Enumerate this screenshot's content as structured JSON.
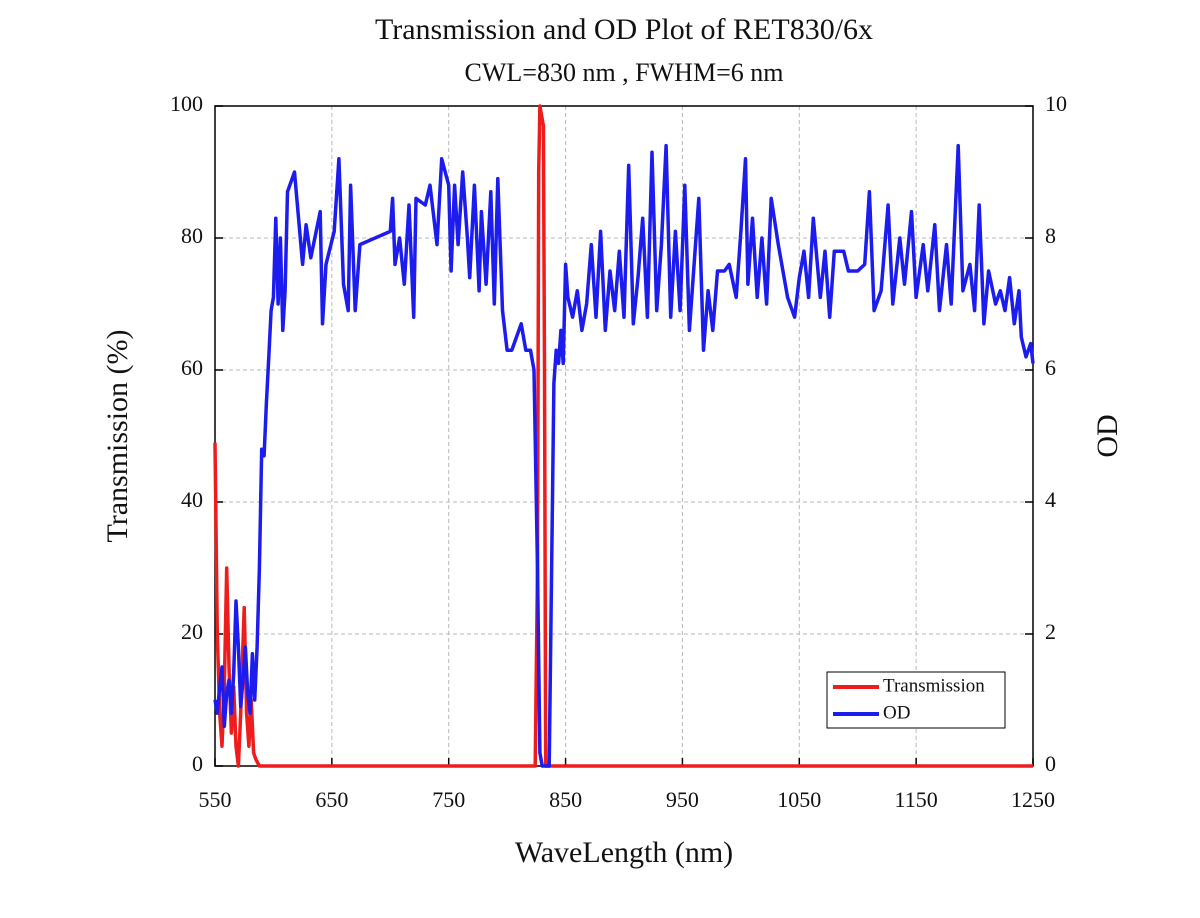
{
  "chart_data": {
    "type": "line",
    "title": "Transmission and OD Plot of RET830/6x",
    "subtitle": "CWL=830 nm , FWHM=6 nm",
    "x_label": "WaveLength (nm)",
    "y_label": "Transmission (%)",
    "y2_label": "OD",
    "xlim": [
      550,
      1250
    ],
    "xticks": [
      550,
      650,
      750,
      850,
      950,
      1050,
      1150,
      1250
    ],
    "ylim": [
      0,
      100
    ],
    "yticks": [
      0,
      20,
      40,
      60,
      80,
      100
    ],
    "y2lim": [
      0,
      10
    ],
    "y2ticks": [
      0,
      2,
      4,
      6,
      8,
      10
    ],
    "grid": true,
    "legend": "lower right",
    "series": [
      {
        "name": "Transmission",
        "color": "#ee1c1c",
        "x": [
          550,
          552,
          554,
          556,
          558,
          560,
          562,
          564,
          566,
          568,
          570,
          572,
          575,
          577,
          579,
          581,
          583,
          585,
          588,
          600,
          820,
          824,
          826,
          827,
          828,
          830,
          831,
          832,
          833,
          836,
          1250
        ],
        "values": [
          49,
          20,
          8,
          3,
          12,
          30,
          15,
          5,
          12,
          3,
          0,
          8,
          24,
          8,
          3,
          10,
          2,
          1,
          0,
          0,
          0,
          0,
          30,
          90,
          100,
          98,
          97,
          60,
          0,
          0,
          0
        ]
      },
      {
        "name": "OD",
        "color": "#1c1cee",
        "axis": "y2",
        "x": [
          550,
          552,
          554,
          556,
          558,
          560,
          562,
          564,
          566,
          568,
          570,
          572,
          574,
          576,
          578,
          580,
          582,
          584,
          586,
          588,
          590,
          592,
          594,
          596,
          598,
          600,
          602,
          604,
          606,
          608,
          610,
          612,
          618,
          625,
          628,
          632,
          640,
          642,
          645,
          652,
          656,
          660,
          664,
          666,
          670,
          674,
          700,
          702,
          704,
          708,
          712,
          716,
          720,
          722,
          730,
          734,
          740,
          744,
          750,
          752,
          755,
          758,
          762,
          766,
          768,
          772,
          776,
          778,
          782,
          786,
          789,
          792,
          796,
          800,
          804,
          808,
          812,
          816,
          820,
          823,
          826,
          828,
          830,
          836,
          840,
          842,
          844,
          846,
          848,
          850,
          852,
          856,
          860,
          864,
          868,
          872,
          876,
          880,
          884,
          888,
          892,
          896,
          900,
          904,
          908,
          912,
          916,
          920,
          924,
          928,
          932,
          936,
          940,
          944,
          948,
          952,
          956,
          960,
          964,
          968,
          972,
          976,
          980,
          986,
          990,
          996,
          1000,
          1004,
          1006,
          1010,
          1014,
          1018,
          1022,
          1026,
          1032,
          1040,
          1046,
          1050,
          1054,
          1058,
          1062,
          1068,
          1072,
          1076,
          1080,
          1088,
          1092,
          1100,
          1106,
          1110,
          1114,
          1120,
          1126,
          1130,
          1136,
          1140,
          1146,
          1150,
          1156,
          1160,
          1166,
          1170,
          1176,
          1180,
          1186,
          1190,
          1196,
          1200,
          1204,
          1208,
          1212,
          1218,
          1222,
          1226,
          1230,
          1234,
          1238,
          1240,
          1244,
          1248,
          1250
        ],
        "values": [
          1.0,
          0.8,
          1.2,
          1.5,
          0.6,
          1.1,
          1.3,
          0.8,
          1.4,
          2.5,
          1.8,
          0.9,
          1.3,
          1.8,
          1.1,
          0.8,
          1.7,
          1.0,
          1.8,
          3.0,
          4.8,
          4.7,
          5.5,
          6.2,
          6.9,
          7.1,
          8.3,
          7.0,
          8.0,
          6.6,
          7.2,
          8.7,
          9.0,
          7.6,
          8.2,
          7.7,
          8.4,
          6.7,
          7.6,
          8.1,
          9.2,
          7.3,
          6.9,
          8.8,
          6.9,
          7.9,
          8.1,
          8.6,
          7.6,
          8.0,
          7.3,
          8.5,
          6.8,
          8.6,
          8.5,
          8.8,
          7.9,
          9.2,
          8.8,
          7.5,
          8.8,
          7.9,
          9.0,
          8.0,
          7.4,
          8.8,
          7.2,
          8.4,
          7.3,
          8.7,
          7.0,
          8.9,
          6.9,
          6.3,
          6.3,
          6.5,
          6.7,
          6.3,
          6.3,
          6.0,
          3.0,
          0.2,
          0,
          0,
          5.8,
          6.3,
          6.1,
          6.6,
          6.1,
          7.6,
          7.1,
          6.8,
          7.2,
          6.6,
          7.0,
          7.9,
          6.8,
          8.1,
          6.6,
          7.5,
          6.9,
          7.8,
          6.8,
          9.1,
          6.7,
          7.4,
          8.3,
          6.8,
          9.3,
          6.9,
          7.9,
          9.4,
          6.8,
          8.1,
          6.9,
          8.8,
          6.6,
          7.6,
          8.6,
          6.3,
          7.2,
          6.6,
          7.5,
          7.5,
          7.6,
          7.1,
          8.1,
          9.2,
          7.3,
          8.3,
          7.1,
          8.0,
          7.0,
          8.6,
          7.9,
          7.1,
          6.8,
          7.4,
          7.8,
          7.1,
          8.3,
          7.1,
          7.8,
          6.8,
          7.8,
          7.8,
          7.5,
          7.5,
          7.6,
          8.7,
          6.9,
          7.2,
          8.5,
          7.0,
          8.0,
          7.3,
          8.4,
          7.1,
          7.9,
          7.2,
          8.2,
          6.9,
          7.9,
          7.0,
          9.4,
          7.2,
          7.6,
          6.9,
          8.5,
          6.7,
          7.5,
          7.0,
          7.2,
          6.9,
          7.4,
          6.7,
          7.2,
          6.5,
          6.2,
          6.4,
          6.1
        ]
      }
    ]
  }
}
